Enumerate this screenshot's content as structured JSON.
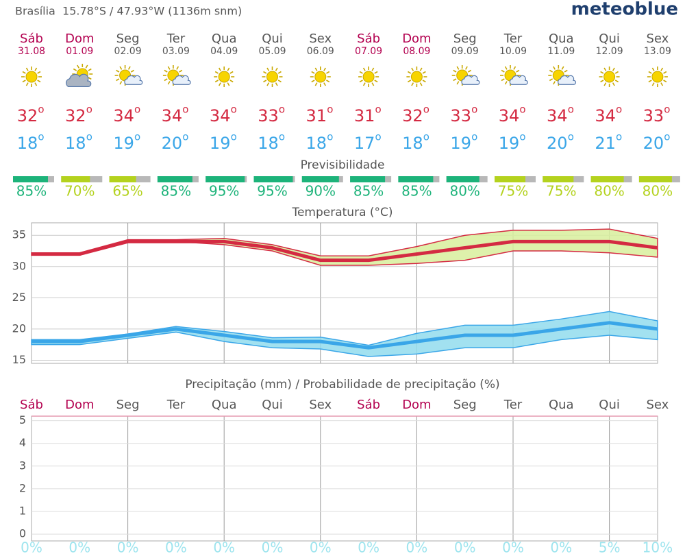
{
  "header": {
    "location": "Brasília  15.78°S / 47.93°W (1136m snm)",
    "brand": "meteoblue"
  },
  "forecast": {
    "degree_mark": "o",
    "weekend_color": "#b3004f",
    "weekday_color": "#555555",
    "tmax_color": "#d42a42",
    "tmin_color": "#3aa6e8",
    "predictability_title": "Previsibilidade",
    "days": [
      {
        "name": "Sáb",
        "date": "31.08",
        "weekend": true,
        "icon": "sun",
        "tmax": 32,
        "tmin": 18,
        "predictability": 85,
        "predictability_label": "85%",
        "predictability_color": "#1db37a"
      },
      {
        "name": "Dom",
        "date": "01.09",
        "weekend": true,
        "icon": "cloudy",
        "tmax": 32,
        "tmin": 18,
        "predictability": 70,
        "predictability_label": "70%",
        "predictability_color": "#b4d21e"
      },
      {
        "name": "Seg",
        "date": "02.09",
        "weekend": false,
        "icon": "partly",
        "tmax": 34,
        "tmin": 19,
        "predictability": 65,
        "predictability_label": "65%",
        "predictability_color": "#b4d21e"
      },
      {
        "name": "Ter",
        "date": "03.09",
        "weekend": false,
        "icon": "partly",
        "tmax": 34,
        "tmin": 20,
        "predictability": 85,
        "predictability_label": "85%",
        "predictability_color": "#1db37a"
      },
      {
        "name": "Qua",
        "date": "04.09",
        "weekend": false,
        "icon": "sun",
        "tmax": 34,
        "tmin": 19,
        "predictability": 95,
        "predictability_label": "95%",
        "predictability_color": "#1db37a"
      },
      {
        "name": "Qui",
        "date": "05.09",
        "weekend": false,
        "icon": "sun",
        "tmax": 33,
        "tmin": 18,
        "predictability": 95,
        "predictability_label": "95%",
        "predictability_color": "#1db37a"
      },
      {
        "name": "Sex",
        "date": "06.09",
        "weekend": false,
        "icon": "sun",
        "tmax": 31,
        "tmin": 18,
        "predictability": 90,
        "predictability_label": "90%",
        "predictability_color": "#1db37a"
      },
      {
        "name": "Sáb",
        "date": "07.09",
        "weekend": true,
        "icon": "sun",
        "tmax": 31,
        "tmin": 17,
        "predictability": 85,
        "predictability_label": "85%",
        "predictability_color": "#1db37a"
      },
      {
        "name": "Dom",
        "date": "08.09",
        "weekend": true,
        "icon": "sun",
        "tmax": 32,
        "tmin": 18,
        "predictability": 85,
        "predictability_label": "85%",
        "predictability_color": "#1db37a"
      },
      {
        "name": "Seg",
        "date": "09.09",
        "weekend": false,
        "icon": "partly",
        "tmax": 33,
        "tmin": 19,
        "predictability": 80,
        "predictability_label": "80%",
        "predictability_color": "#1db37a"
      },
      {
        "name": "Ter",
        "date": "10.09",
        "weekend": false,
        "icon": "partly",
        "tmax": 34,
        "tmin": 19,
        "predictability": 75,
        "predictability_label": "75%",
        "predictability_color": "#b4d21e"
      },
      {
        "name": "Qua",
        "date": "11.09",
        "weekend": false,
        "icon": "partly",
        "tmax": 34,
        "tmin": 20,
        "predictability": 75,
        "predictability_label": "75%",
        "predictability_color": "#b4d21e"
      },
      {
        "name": "Qui",
        "date": "12.09",
        "weekend": false,
        "icon": "sun",
        "tmax": 34,
        "tmin": 21,
        "predictability": 80,
        "predictability_label": "80%",
        "predictability_color": "#b4d21e"
      },
      {
        "name": "Sex",
        "date": "13.09",
        "weekend": false,
        "icon": "sun",
        "tmax": 33,
        "tmin": 20,
        "predictability": 80,
        "predictability_label": "80%",
        "predictability_color": "#b4d21e"
      }
    ]
  },
  "chart_data": [
    {
      "type": "line",
      "title": "Temperatura (°C)",
      "ylim": [
        14.5,
        37
      ],
      "yticks": [
        15,
        20,
        25,
        30,
        35
      ],
      "grid": true,
      "series": [
        {
          "color": "#d42a42",
          "band_color": "#d8ee9c",
          "values": [
            32,
            32,
            34,
            34,
            34,
            33,
            31,
            31,
            32,
            33,
            34,
            34,
            34,
            33
          ],
          "upper": [
            32.2,
            32.2,
            34.3,
            34.3,
            34.5,
            33.5,
            31.7,
            31.7,
            33.2,
            35,
            35.8,
            35.8,
            36,
            34.5
          ],
          "lower": [
            31.8,
            31.8,
            34,
            34,
            33.5,
            32.5,
            30.2,
            30.2,
            30.5,
            31,
            32.5,
            32.5,
            32.2,
            31.5
          ]
        },
        {
          "color": "#3aa6e8",
          "band_color": "#92dced",
          "values": [
            18,
            18,
            19,
            20,
            19,
            18,
            18,
            17,
            18,
            19,
            19,
            20,
            21,
            20
          ],
          "upper": [
            18.3,
            18.3,
            19.2,
            20.4,
            19.6,
            18.6,
            18.7,
            17.4,
            19.3,
            20.6,
            20.6,
            21.6,
            22.8,
            21.3
          ],
          "lower": [
            17.5,
            17.5,
            18.5,
            19.5,
            18,
            17,
            16.8,
            15.6,
            16,
            17,
            17,
            18.3,
            19,
            18.3
          ]
        }
      ]
    },
    {
      "type": "bar",
      "title": "Precipitação (mm) / Probabilidade de precipitação (%)",
      "ylim": [
        -0.3,
        5.2
      ],
      "yticks": [
        0,
        1,
        2,
        3,
        4,
        5
      ],
      "grid": true,
      "categories": [
        "Sáb",
        "Dom",
        "Seg",
        "Ter",
        "Qua",
        "Qui",
        "Sex",
        "Sáb",
        "Dom",
        "Seg",
        "Ter",
        "Qua",
        "Qui",
        "Sex"
      ],
      "series": [
        {
          "color": "#3a8fd8",
          "values": [
            0,
            0,
            0,
            0,
            0,
            0,
            0,
            0,
            0,
            0,
            0,
            0,
            0,
            0
          ]
        },
        {
          "color": "#9de4ee",
          "values": [
            0,
            0,
            0,
            0,
            0,
            0,
            0,
            0,
            0,
            0,
            0,
            0,
            5,
            10
          ],
          "value_labels": [
            "0%",
            "0%",
            "0%",
            "0%",
            "0%",
            "0%",
            "0%",
            "0%",
            "0%",
            "0%",
            "0%",
            "0%",
            "5%",
            "10%"
          ]
        }
      ]
    }
  ]
}
